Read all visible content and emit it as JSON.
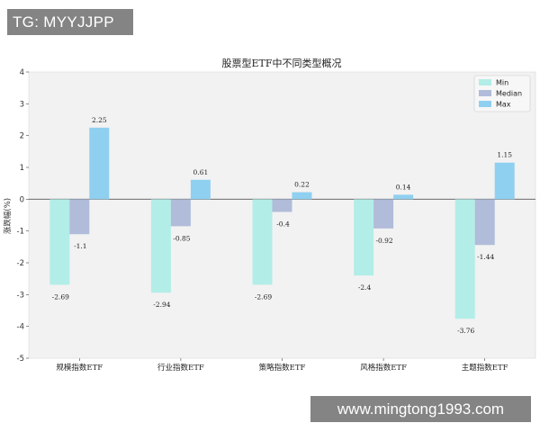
{
  "watermarks": {
    "top": "TG: MYYJJPP",
    "bottom": "www.mingtong1993.com"
  },
  "colors": {
    "min": "#b3ede8",
    "median": "#b0bcd9",
    "max": "#8fd0f0",
    "plot_bg": "#f2f2f2"
  },
  "chart_data": {
    "type": "bar",
    "title": "股票型ETF中不同类型概况",
    "xlabel": "",
    "ylabel": "涨跌幅(%)",
    "ylim": [
      -5,
      4
    ],
    "yticks": [
      4,
      3,
      2,
      1,
      0,
      -1,
      -2,
      -3,
      -4,
      -5
    ],
    "grid": false,
    "legend_position": "upper right",
    "categories": [
      "规模指数ETF",
      "行业指数ETF",
      "策略指数ETF",
      "风格指数ETF",
      "主题指数ETF"
    ],
    "series": [
      {
        "name": "Min",
        "values": [
          -2.69,
          -2.94,
          -2.69,
          -2.4,
          -3.76
        ]
      },
      {
        "name": "Median",
        "values": [
          -1.1,
          -0.85,
          -0.4,
          -0.92,
          -1.44
        ]
      },
      {
        "name": "Max",
        "values": [
          2.25,
          0.61,
          0.22,
          0.14,
          1.15
        ]
      }
    ]
  }
}
